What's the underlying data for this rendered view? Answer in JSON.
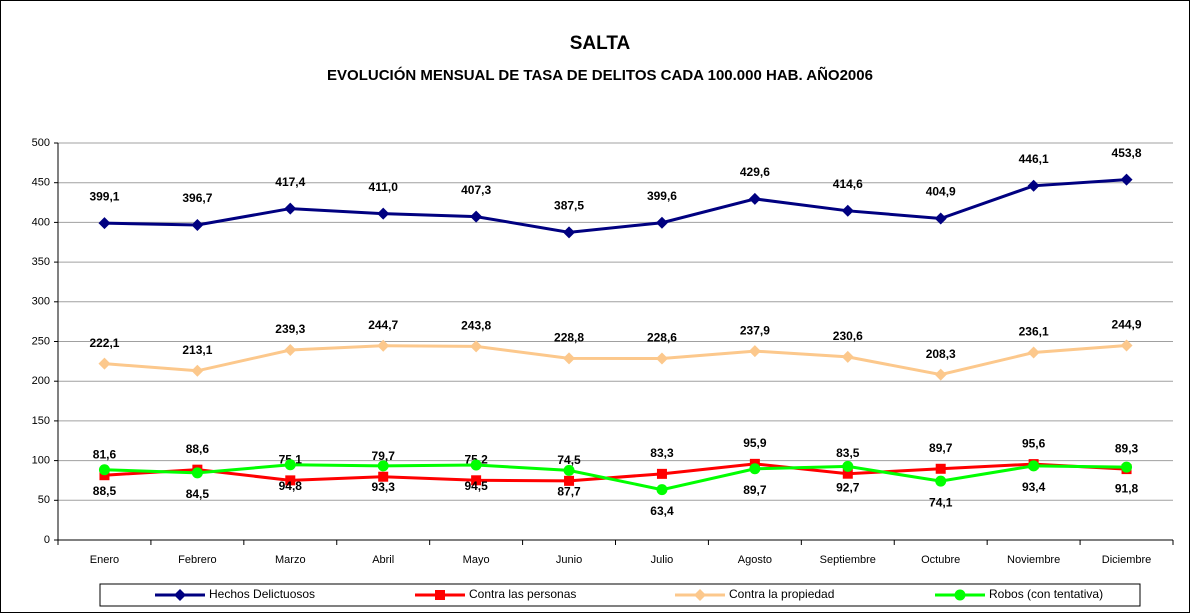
{
  "chart_data": {
    "type": "line",
    "title": "SALTA",
    "subtitle": "EVOLUCIÓN MENSUAL DE TASA DE DELITOS CADA 100.000 HAB. AÑO2006",
    "categories": [
      "Enero",
      "Febrero",
      "Marzo",
      "Abril",
      "Mayo",
      "Junio",
      "Julio",
      "Agosto",
      "Septiembre",
      "Octubre",
      "Noviembre",
      "Diciembre"
    ],
    "series": [
      {
        "name": "Hechos Delictuosos",
        "color": "#000080",
        "marker": "diamond",
        "values": [
          399.1,
          396.7,
          417.4,
          411.0,
          407.3,
          387.5,
          399.6,
          429.6,
          414.6,
          404.9,
          446.1,
          453.8
        ],
        "value_labels": [
          "399,1",
          "396,7",
          "417,4",
          "411,0",
          "407,3",
          "387,5",
          "399,6",
          "429,6",
          "414,6",
          "404,9",
          "446,1",
          "453,8"
        ]
      },
      {
        "name": "Contra las personas",
        "color": "#ff0000",
        "marker": "square",
        "values": [
          81.6,
          88.6,
          75.1,
          79.7,
          75.2,
          74.5,
          83.3,
          95.9,
          83.5,
          89.7,
          95.6,
          89.3
        ],
        "value_labels": [
          "81,6",
          "88,6",
          "75,1",
          "79,7",
          "75,2",
          "74,5",
          "83,3",
          "95,9",
          "83,5",
          "89,7",
          "95,6",
          "89,3"
        ]
      },
      {
        "name": "Contra la propiedad",
        "color": "#fcc88c",
        "marker": "diamond",
        "values": [
          222.1,
          213.1,
          239.3,
          244.7,
          243.8,
          228.8,
          228.6,
          237.9,
          230.6,
          208.3,
          236.1,
          244.9
        ],
        "value_labels": [
          "222,1",
          "213,1",
          "239,3",
          "244,7",
          "243,8",
          "228,8",
          "228,6",
          "237,9",
          "230,6",
          "208,3",
          "236,1",
          "244,9"
        ]
      },
      {
        "name": "Robos (con tentativa)",
        "color": "#00ff00",
        "marker": "circle",
        "values": [
          88.5,
          84.5,
          94.8,
          93.3,
          94.5,
          87.7,
          63.4,
          89.7,
          92.7,
          74.1,
          93.4,
          91.8
        ],
        "value_labels": [
          "88,5",
          "84,5",
          "94,8",
          "93,3",
          "94,5",
          "87,7",
          "63,4",
          "89,7",
          "92,7",
          "74,1",
          "93,4",
          "91,8"
        ]
      }
    ],
    "ylim": [
      0,
      500
    ],
    "yticks": [
      0,
      50,
      100,
      150,
      200,
      250,
      300,
      350,
      400,
      450,
      500
    ],
    "grid": true,
    "legend": "bottom"
  }
}
